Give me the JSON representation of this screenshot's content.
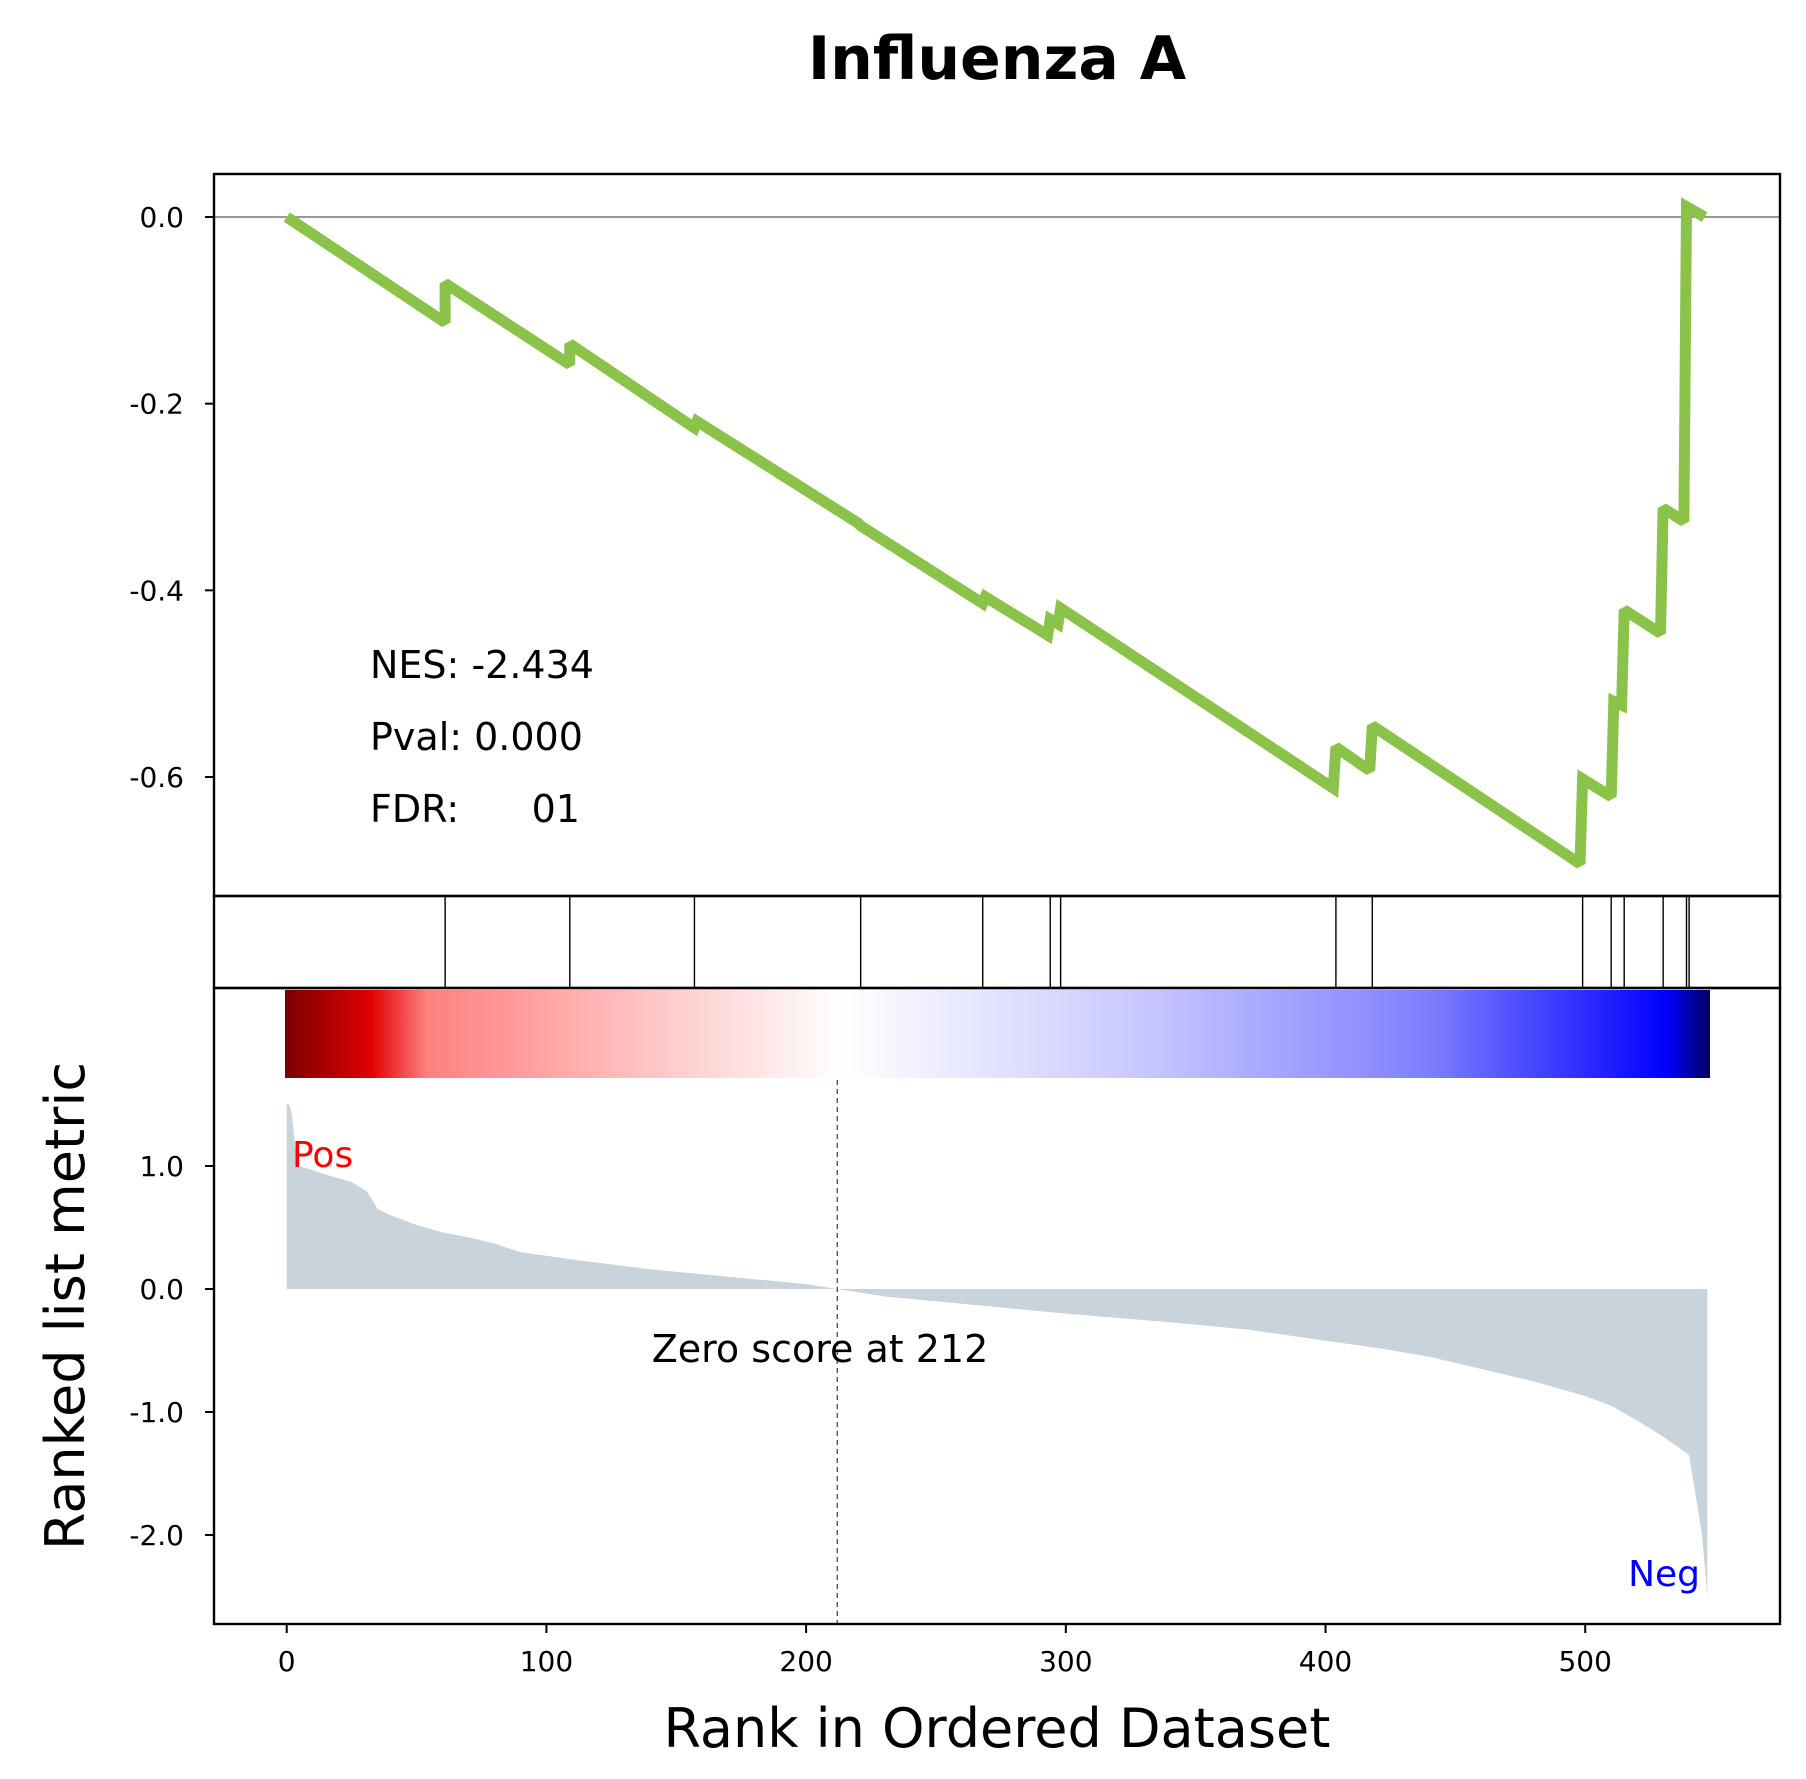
{
  "chart_data": {
    "type": "line",
    "title": "Influenza A",
    "xlabel": "Rank in Ordered Dataset",
    "ylabel": "Ranked list metric",
    "xlim": [
      -28,
      575
    ],
    "xticks": [
      0,
      100,
      200,
      300,
      400,
      500
    ],
    "xtick_labels": [
      "0",
      "100",
      "200",
      "300",
      "400",
      "500"
    ],
    "n_genes": 547,
    "enrichment": {
      "ylim": [
        -0.7,
        0.045
      ],
      "yticks": [
        0.0,
        -0.2,
        -0.4,
        -0.6
      ],
      "ytick_labels": [
        "0.0",
        "-0.2",
        "-0.4",
        "-0.6"
      ],
      "baseline": 0.0,
      "line_color": "#8bc34a",
      "points": [
        [
          0,
          0.0
        ],
        [
          61,
          -0.113
        ],
        [
          61,
          -0.071
        ],
        [
          109,
          -0.158
        ],
        [
          109,
          -0.136
        ],
        [
          157,
          -0.226
        ],
        [
          158,
          -0.219
        ],
        [
          220,
          -0.328
        ],
        [
          221,
          -0.331
        ],
        [
          268,
          -0.414
        ],
        [
          269,
          -0.407
        ],
        [
          293,
          -0.448
        ],
        [
          294,
          -0.431
        ],
        [
          297,
          -0.436
        ],
        [
          298,
          -0.419
        ],
        [
          403,
          -0.612
        ],
        [
          404,
          -0.568
        ],
        [
          417,
          -0.593
        ],
        [
          418,
          -0.545
        ],
        [
          498,
          -0.693
        ],
        [
          499,
          -0.602
        ],
        [
          510,
          -0.621
        ],
        [
          511,
          -0.519
        ],
        [
          514,
          -0.523
        ],
        [
          515,
          -0.421
        ],
        [
          529,
          -0.446
        ],
        [
          530,
          -0.312
        ],
        [
          538,
          -0.326
        ],
        [
          539,
          0.011
        ],
        [
          546,
          0.0
        ]
      ]
    },
    "stats": {
      "nes_label": "NES: -2.434",
      "pval_label": "Pval: 0.000",
      "fdr_label": "FDR:      01"
    },
    "hits": [
      61,
      109,
      157,
      221,
      268,
      294,
      298,
      404,
      418,
      499,
      510,
      515,
      530,
      539,
      540
    ],
    "hit_color": "#000000",
    "heatmap_colors": [
      "#7a0000",
      "#e00000",
      "#ff8080",
      "#ffffff",
      "#c8c8ff",
      "#8080ff",
      "#0000ff",
      "#000060"
    ],
    "ranked_metric": {
      "ylim": [
        -2.75,
        1.5
      ],
      "yticks": [
        1.0,
        0.0,
        -1.0,
        -2.0
      ],
      "ytick_labels": [
        "1.0",
        "0.0",
        "-1.0",
        "-2.0"
      ],
      "fill_color": "#c8d3dc",
      "points": [
        [
          0,
          1.5
        ],
        [
          1,
          1.5
        ],
        [
          2,
          1.42
        ],
        [
          4,
          1.0
        ],
        [
          8,
          0.98
        ],
        [
          15,
          0.93
        ],
        [
          25,
          0.87
        ],
        [
          31,
          0.79
        ],
        [
          35,
          0.65
        ],
        [
          40,
          0.6
        ],
        [
          45,
          0.56
        ],
        [
          50,
          0.52
        ],
        [
          60,
          0.46
        ],
        [
          70,
          0.42
        ],
        [
          80,
          0.37
        ],
        [
          90,
          0.3
        ],
        [
          100,
          0.27
        ],
        [
          110,
          0.24
        ],
        [
          125,
          0.2
        ],
        [
          140,
          0.16
        ],
        [
          160,
          0.12
        ],
        [
          180,
          0.08
        ],
        [
          200,
          0.04
        ],
        [
          212,
          0.0
        ],
        [
          230,
          -0.06
        ],
        [
          260,
          -0.12
        ],
        [
          300,
          -0.2
        ],
        [
          340,
          -0.27
        ],
        [
          370,
          -0.33
        ],
        [
          400,
          -0.42
        ],
        [
          420,
          -0.48
        ],
        [
          440,
          -0.55
        ],
        [
          460,
          -0.65
        ],
        [
          480,
          -0.75
        ],
        [
          500,
          -0.87
        ],
        [
          510,
          -0.95
        ],
        [
          520,
          -1.07
        ],
        [
          530,
          -1.2
        ],
        [
          540,
          -1.35
        ],
        [
          545,
          -2.0
        ],
        [
          547,
          -2.5
        ]
      ],
      "zero_cross": 212,
      "zero_label": "Zero score at 212",
      "pos_label": "Pos",
      "neg_label": "Neg",
      "pos_color": "#ff0000",
      "neg_color": "#0000ff"
    }
  }
}
